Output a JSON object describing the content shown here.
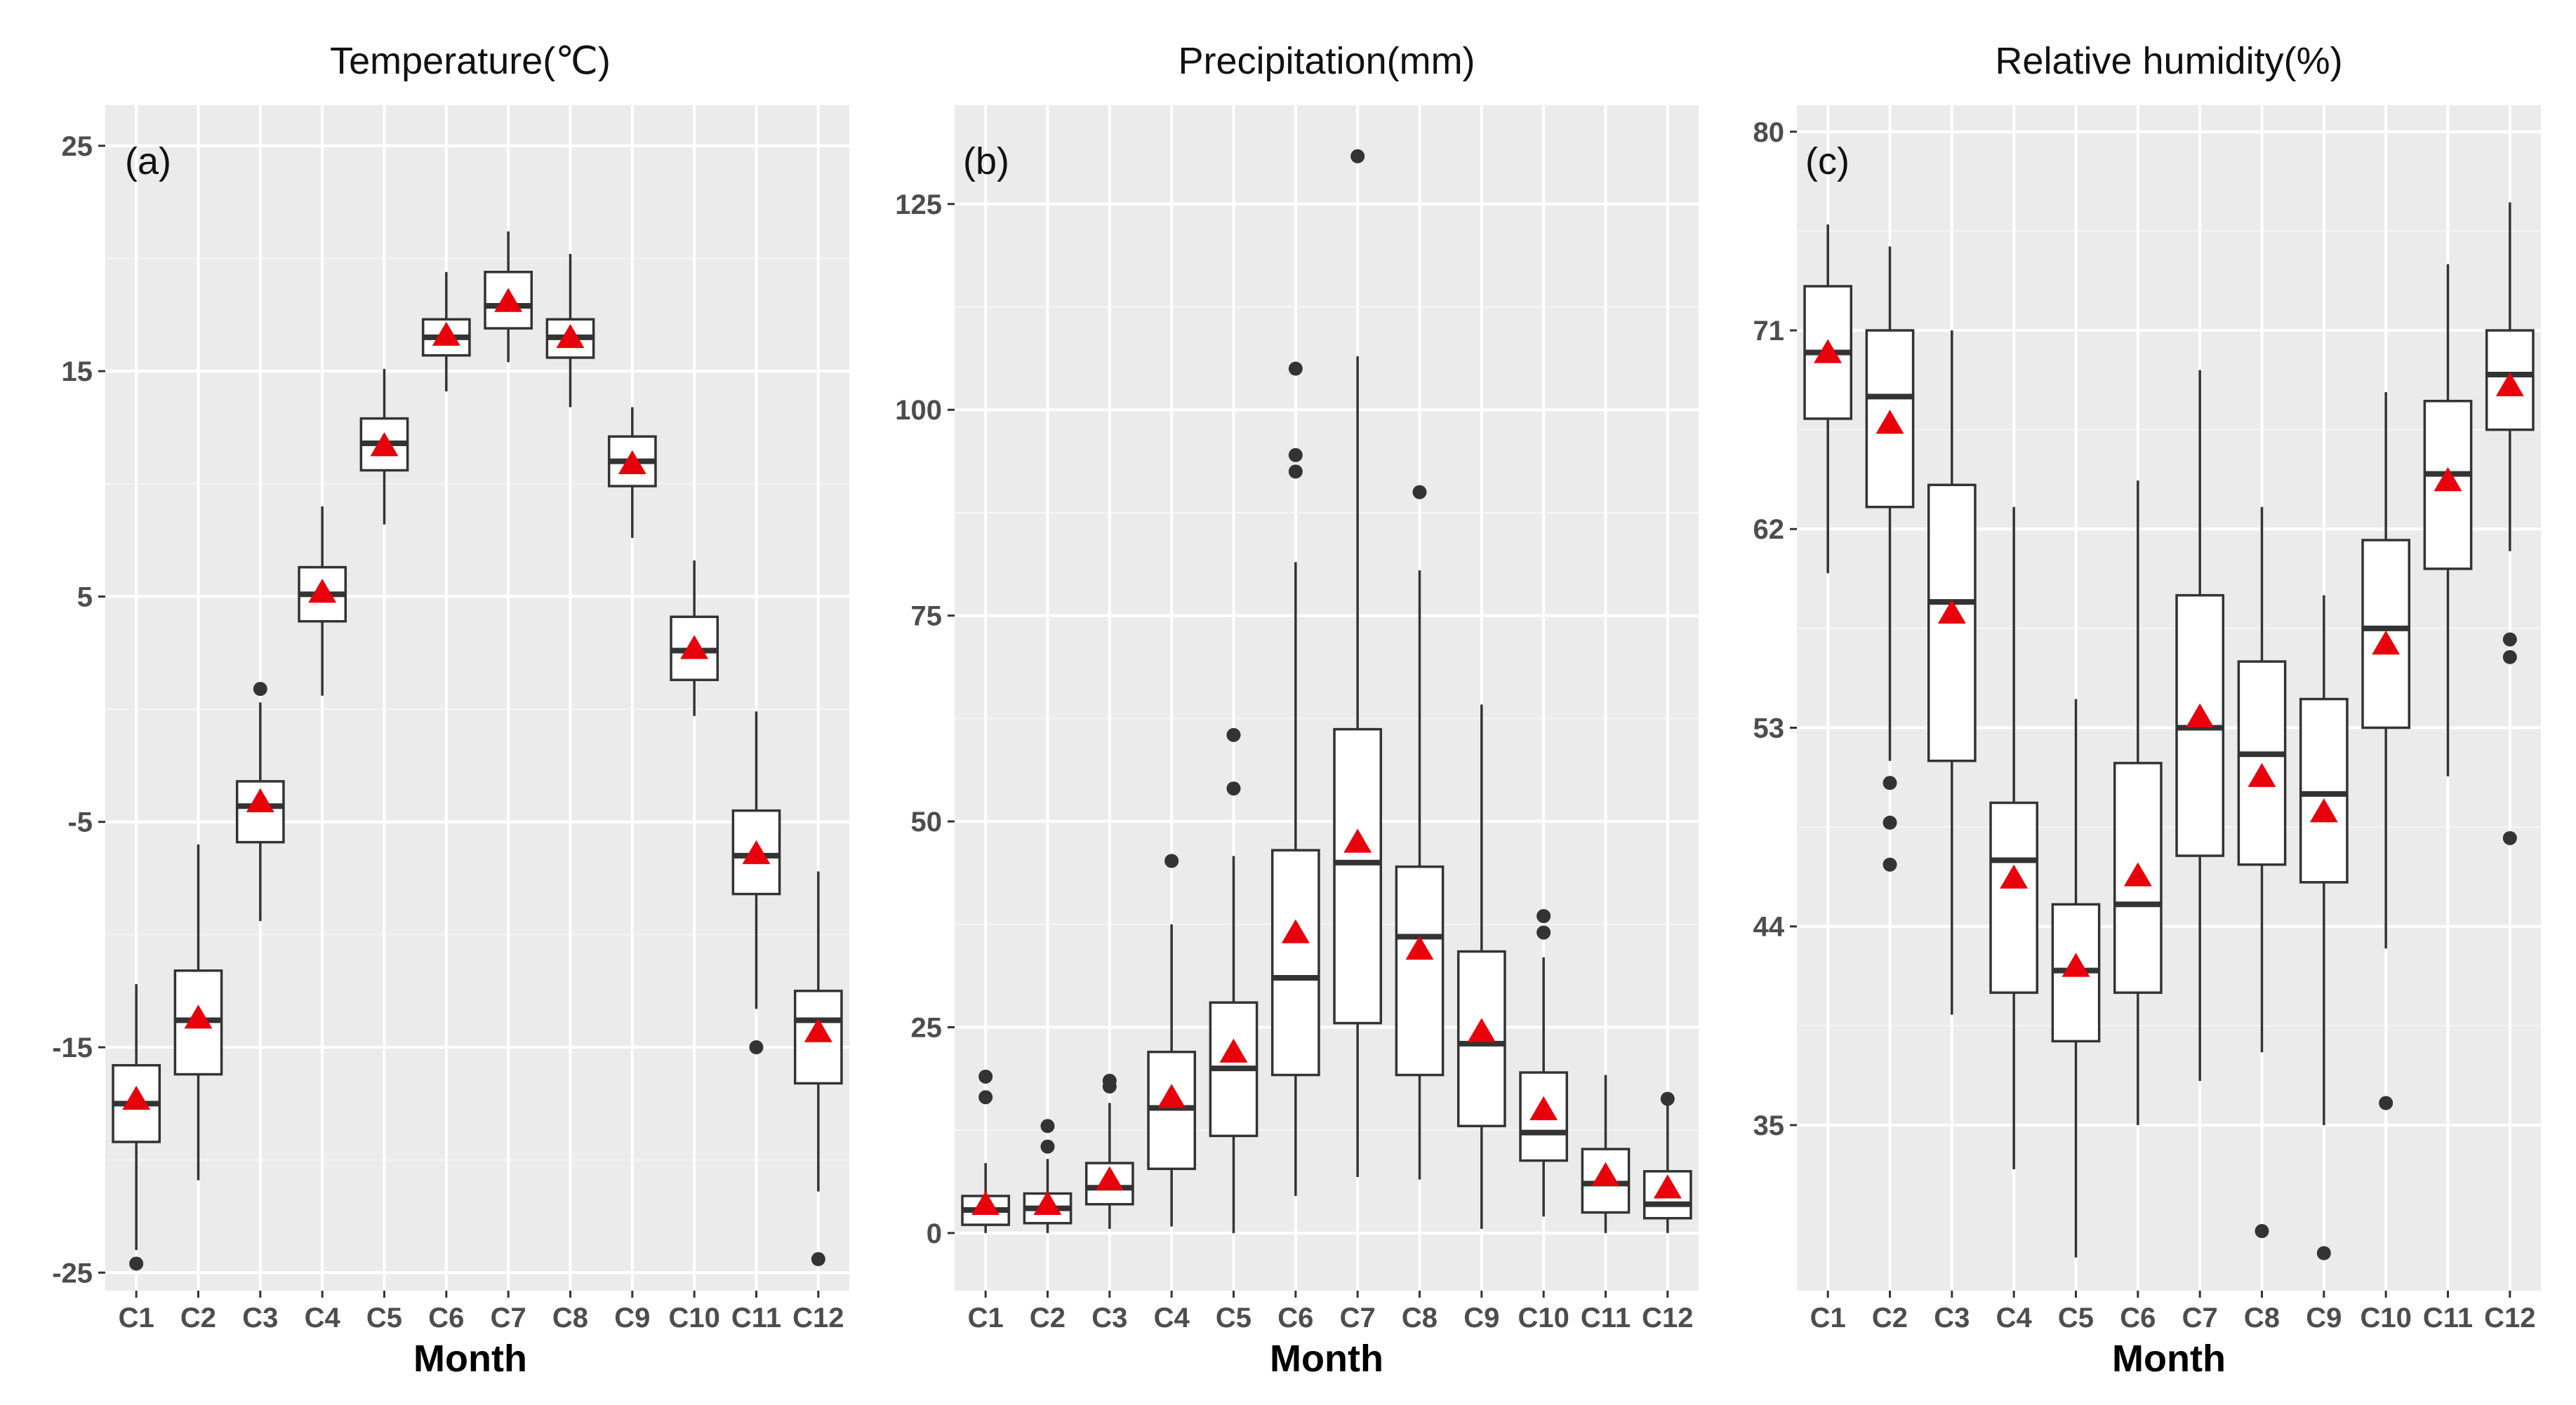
{
  "chart_data": [
    {
      "type": "boxplot",
      "panel_label": "(a)",
      "title": "Temperature(℃)",
      "xlabel": "Month",
      "ylabel": "",
      "categories": [
        "C1",
        "C2",
        "C3",
        "C4",
        "C5",
        "C6",
        "C7",
        "C8",
        "C9",
        "C10",
        "C11",
        "C12"
      ],
      "yticks": [
        -25,
        -15,
        -5,
        5,
        15,
        25
      ],
      "ylim": [
        -25.8,
        26.8
      ],
      "mean_marker_color": "#e8000b",
      "boxes": [
        {
          "min": -24.0,
          "q1": -19.2,
          "median": -17.5,
          "q3": -15.8,
          "max": -12.2,
          "mean": -17.3,
          "outliers": [
            -24.6
          ]
        },
        {
          "min": -20.9,
          "q1": -16.2,
          "median": -13.8,
          "q3": -11.6,
          "max": -6.0,
          "mean": -13.7,
          "outliers": []
        },
        {
          "min": -9.4,
          "q1": -5.9,
          "median": -4.3,
          "q3": -3.2,
          "max": 0.3,
          "mean": -4.1,
          "outliers": [
            0.9
          ]
        },
        {
          "min": 0.6,
          "q1": 3.9,
          "median": 5.1,
          "q3": 6.3,
          "max": 9.0,
          "mean": 5.2,
          "outliers": []
        },
        {
          "min": 8.2,
          "q1": 10.6,
          "median": 11.8,
          "q3": 12.9,
          "max": 15.1,
          "mean": 11.7,
          "outliers": []
        },
        {
          "min": 14.1,
          "q1": 15.7,
          "median": 16.5,
          "q3": 17.3,
          "max": 19.4,
          "mean": 16.6,
          "outliers": []
        },
        {
          "min": 15.4,
          "q1": 16.9,
          "median": 17.9,
          "q3": 19.4,
          "max": 21.2,
          "mean": 18.1,
          "outliers": []
        },
        {
          "min": 13.4,
          "q1": 15.6,
          "median": 16.5,
          "q3": 17.3,
          "max": 20.2,
          "mean": 16.5,
          "outliers": []
        },
        {
          "min": 7.6,
          "q1": 9.9,
          "median": 11.0,
          "q3": 12.1,
          "max": 13.4,
          "mean": 10.9,
          "outliers": []
        },
        {
          "min": -0.3,
          "q1": 1.3,
          "median": 2.6,
          "q3": 4.1,
          "max": 6.6,
          "mean": 2.7,
          "outliers": []
        },
        {
          "min": -13.3,
          "q1": -8.2,
          "median": -6.5,
          "q3": -4.5,
          "max": -0.1,
          "mean": -6.4,
          "outliers": [
            -15.0
          ]
        },
        {
          "min": -21.4,
          "q1": -16.6,
          "median": -13.8,
          "q3": -12.5,
          "max": -7.2,
          "mean": -14.3,
          "outliers": [
            -24.4
          ]
        }
      ]
    },
    {
      "type": "boxplot",
      "panel_label": "(b)",
      "title": "Precipitation(mm)",
      "xlabel": "Month",
      "ylabel": "",
      "categories": [
        "C1",
        "C2",
        "C3",
        "C4",
        "C5",
        "C6",
        "C7",
        "C8",
        "C9",
        "C10",
        "C11",
        "C12"
      ],
      "yticks": [
        0,
        25,
        50,
        75,
        100,
        125
      ],
      "ylim": [
        -7,
        137
      ],
      "mean_marker_color": "#e8000b",
      "boxes": [
        {
          "min": 0.0,
          "q1": 1.0,
          "median": 2.8,
          "q3": 4.5,
          "max": 8.5,
          "mean": 3.5,
          "outliers": [
            16.5,
            19.0
          ]
        },
        {
          "min": 0.0,
          "q1": 1.2,
          "median": 3.0,
          "q3": 4.8,
          "max": 9.0,
          "mean": 3.5,
          "outliers": [
            10.5,
            13.0
          ]
        },
        {
          "min": 0.5,
          "q1": 3.5,
          "median": 5.5,
          "q3": 8.5,
          "max": 15.8,
          "mean": 6.5,
          "outliers": [
            17.8,
            18.5
          ]
        },
        {
          "min": 0.8,
          "q1": 7.8,
          "median": 15.2,
          "q3": 22.0,
          "max": 37.5,
          "mean": 16.5,
          "outliers": [
            45.2
          ]
        },
        {
          "min": 0.0,
          "q1": 11.8,
          "median": 20.0,
          "q3": 28.0,
          "max": 45.8,
          "mean": 22.0,
          "outliers": [
            54.0,
            60.5
          ]
        },
        {
          "min": 4.5,
          "q1": 19.2,
          "median": 31.0,
          "q3": 46.5,
          "max": 81.5,
          "mean": 36.5,
          "outliers": [
            92.5,
            94.5,
            105.0
          ]
        },
        {
          "min": 6.8,
          "q1": 25.5,
          "median": 45.0,
          "q3": 61.2,
          "max": 106.5,
          "mean": 47.5,
          "outliers": [
            130.8
          ]
        },
        {
          "min": 6.5,
          "q1": 19.2,
          "median": 36.0,
          "q3": 44.5,
          "max": 80.5,
          "mean": 34.5,
          "outliers": [
            90.0
          ]
        },
        {
          "min": 0.5,
          "q1": 13.0,
          "median": 23.0,
          "q3": 34.2,
          "max": 64.2,
          "mean": 24.5,
          "outliers": []
        },
        {
          "min": 2.0,
          "q1": 8.8,
          "median": 12.2,
          "q3": 19.5,
          "max": 33.5,
          "mean": 15.0,
          "outliers": [
            36.5,
            38.5
          ]
        },
        {
          "min": 0.0,
          "q1": 2.5,
          "median": 6.0,
          "q3": 10.2,
          "max": 19.2,
          "mean": 7.0,
          "outliers": []
        },
        {
          "min": 0.0,
          "q1": 1.8,
          "median": 3.5,
          "q3": 7.5,
          "max": 15.5,
          "mean": 5.5,
          "outliers": [
            16.3
          ]
        }
      ]
    },
    {
      "type": "boxplot",
      "panel_label": "(c)",
      "title": "Relative humidity(%)",
      "xlabel": "Month",
      "ylabel": "",
      "categories": [
        "C1",
        "C2",
        "C3",
        "C4",
        "C5",
        "C6",
        "C7",
        "C8",
        "C9",
        "C10",
        "C11",
        "C12"
      ],
      "yticks": [
        35,
        44,
        53,
        62,
        71,
        80
      ],
      "ylim": [
        27.5,
        81.2
      ],
      "mean_marker_color": "#e8000b",
      "boxes": [
        {
          "min": 60.0,
          "q1": 67.0,
          "median": 70.0,
          "q3": 73.0,
          "max": 75.8,
          "mean": 70.0,
          "outliers": []
        },
        {
          "min": 51.5,
          "q1": 63.0,
          "median": 68.0,
          "q3": 71.0,
          "max": 74.8,
          "mean": 66.8,
          "outliers": [
            46.8,
            48.7,
            50.5
          ]
        },
        {
          "min": 40.0,
          "q1": 51.5,
          "median": 58.7,
          "q3": 64.0,
          "max": 71.0,
          "mean": 58.2,
          "outliers": []
        },
        {
          "min": 33.0,
          "q1": 41.0,
          "median": 47.0,
          "q3": 49.6,
          "max": 63.0,
          "mean": 46.2,
          "outliers": []
        },
        {
          "min": 29.0,
          "q1": 38.8,
          "median": 42.0,
          "q3": 45.0,
          "max": 54.3,
          "mean": 42.2,
          "outliers": []
        },
        {
          "min": 35.0,
          "q1": 41.0,
          "median": 45.0,
          "q3": 51.4,
          "max": 64.2,
          "mean": 46.3,
          "outliers": []
        },
        {
          "min": 37.0,
          "q1": 47.2,
          "median": 53.0,
          "q3": 59.0,
          "max": 69.2,
          "mean": 53.5,
          "outliers": []
        },
        {
          "min": 38.3,
          "q1": 46.8,
          "median": 51.8,
          "q3": 56.0,
          "max": 63.0,
          "mean": 50.8,
          "outliers": [
            30.2
          ]
        },
        {
          "min": 35.0,
          "q1": 46.0,
          "median": 50.0,
          "q3": 54.3,
          "max": 59.0,
          "mean": 49.2,
          "outliers": [
            29.2
          ]
        },
        {
          "min": 43.0,
          "q1": 53.0,
          "median": 57.5,
          "q3": 61.5,
          "max": 68.2,
          "mean": 56.8,
          "outliers": [
            36.0
          ]
        },
        {
          "min": 50.8,
          "q1": 60.2,
          "median": 64.5,
          "q3": 67.8,
          "max": 74.0,
          "mean": 64.2,
          "outliers": []
        },
        {
          "min": 61.0,
          "q1": 66.5,
          "median": 69.0,
          "q3": 71.0,
          "max": 76.8,
          "mean": 68.5,
          "outliers": [
            48.0,
            56.2,
            57.0
          ]
        }
      ]
    }
  ]
}
